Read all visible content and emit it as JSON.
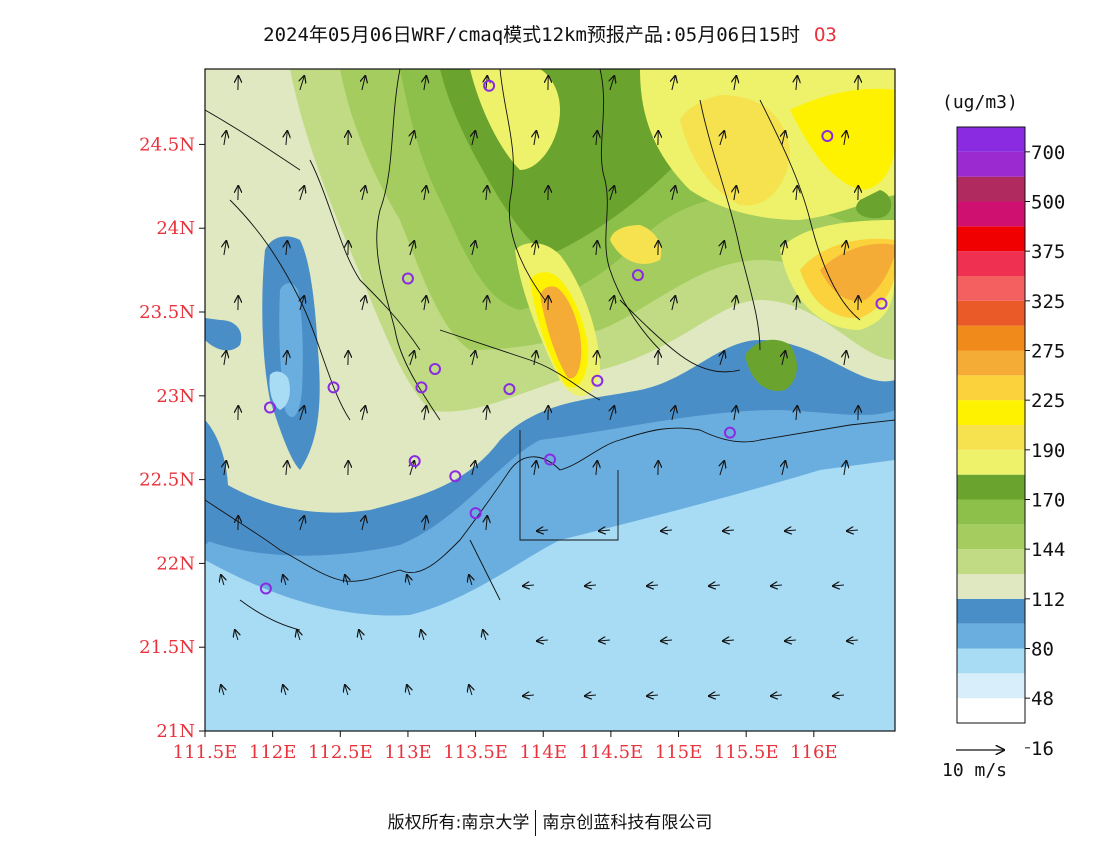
{
  "title": {
    "text": "2024年05月06日WRF/cmaq模式12km预报产品:05月06日15时",
    "species": "O3"
  },
  "map": {
    "lat_ticks": [
      "24.5N",
      "24N",
      "23.5N",
      "23N",
      "22.5N",
      "22N",
      "21.5N",
      "21N"
    ],
    "lon_ticks": [
      "111.5E",
      "112E",
      "112.5E",
      "113E",
      "113.5E",
      "114E",
      "114.5E",
      "115E",
      "115.5E",
      "116E"
    ],
    "lon_range": [
      111.5,
      116.6
    ],
    "lat_range": [
      21.0,
      24.95
    ],
    "tick_color": "#e8323c",
    "stations": [
      [
        113.6,
        24.85
      ],
      [
        116.1,
        24.55
      ],
      [
        113.0,
        23.7
      ],
      [
        114.7,
        23.72
      ],
      [
        116.5,
        23.55
      ],
      [
        113.2,
        23.16
      ],
      [
        112.45,
        23.05
      ],
      [
        113.1,
        23.05
      ],
      [
        113.75,
        23.04
      ],
      [
        114.4,
        23.09
      ],
      [
        111.98,
        22.93
      ],
      [
        115.38,
        22.78
      ],
      [
        113.05,
        22.61
      ],
      [
        113.35,
        22.52
      ],
      [
        114.05,
        22.62
      ],
      [
        113.5,
        22.3
      ],
      [
        111.95,
        21.85
      ]
    ],
    "station_color": "#8a2be2"
  },
  "legend": {
    "unit": "(ug/m3)",
    "labels": [
      "700",
      "500",
      "375",
      "325",
      "275",
      "225",
      "190",
      "170",
      "144",
      "112",
      "80",
      "48",
      "16"
    ],
    "colors": [
      "#ffffff",
      "#d8eefa",
      "#a8dcf5",
      "#6aaee0",
      "#4a8ec8",
      "#dfe8c0",
      "#c0db83",
      "#a4cc5e",
      "#8cc04a",
      "#6aa32e",
      "#eef26a",
      "#f5e24e",
      "#fff200",
      "#fbd13c",
      "#f4ac36",
      "#f08a1a",
      "#ea5a28",
      "#f46060",
      "#f03050",
      "#f00000",
      "#d01070",
      "#b02a60",
      "#9b2bd1",
      "#8a2be2"
    ]
  },
  "wind": {
    "reference_label": "10 m/s"
  },
  "copyright": {
    "prefix": "版权所有:",
    "org1": "南京大学",
    "org2": "南京创蓝科技有限公司"
  }
}
